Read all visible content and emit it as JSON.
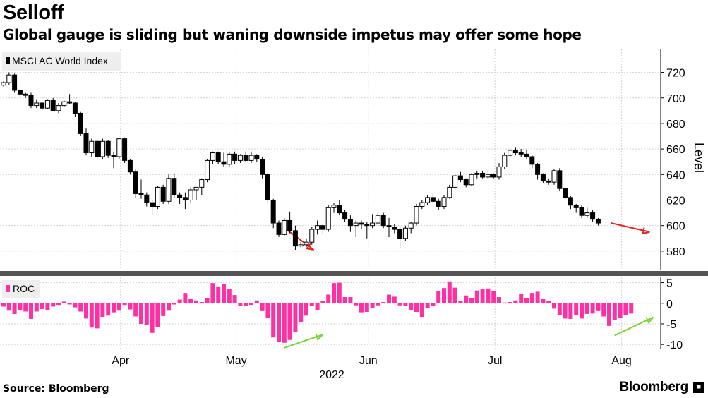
{
  "header": {
    "title": "Selloff",
    "subtitle": "Global gauge is sliding but waning downside impetus may offer some hope"
  },
  "footer": {
    "source": "Source: Bloomberg",
    "brand": "Bloomberg",
    "brand_icon": "bloomberg-terminal-icon"
  },
  "colors": {
    "candle_down": "#000000",
    "candle_up": "#ffffff",
    "roc_bar": "#ff2fa4",
    "arrow_red": "#e8231f",
    "arrow_green": "#7bd43a",
    "grid": "#d4d4d4",
    "divider": "#555555"
  },
  "chart_data": [
    {
      "type": "candlestick",
      "legend": "MSCI AC World Index",
      "ylabel": "Level",
      "ylim": [
        565,
        738
      ],
      "yticks": [
        "580",
        "600",
        "620",
        "640",
        "660",
        "680",
        "700",
        "720"
      ],
      "ytick_values": [
        580,
        600,
        620,
        640,
        660,
        680,
        700,
        720
      ],
      "xtick_labels": [
        "Apr",
        "May",
        "Jun",
        "Jul",
        "Aug"
      ],
      "xtick_index": [
        11,
        32,
        56,
        79,
        102
      ],
      "year_label": "2022",
      "arrows": [
        {
          "color": "red",
          "from_index": 52,
          "from_value": 597,
          "to_index": 57,
          "to_value": 581
        },
        {
          "color": "red",
          "from_index": 111,
          "from_value": 602,
          "to_index": 118,
          "to_value": 595
        }
      ],
      "candles": [
        [
          710,
          713,
          709,
          712
        ],
        [
          712,
          720,
          710,
          718
        ],
        [
          718,
          719,
          704,
          706
        ],
        [
          706,
          707,
          700,
          703
        ],
        [
          703,
          704,
          700,
          702
        ],
        [
          702,
          704,
          692,
          694
        ],
        [
          694,
          699,
          692,
          696
        ],
        [
          696,
          697,
          690,
          692
        ],
        [
          692,
          699,
          691,
          698
        ],
        [
          698,
          700,
          690,
          690
        ],
        [
          690,
          696,
          688,
          694
        ],
        [
          694,
          698,
          693,
          697
        ],
        [
          697,
          703,
          695,
          696
        ],
        [
          696,
          697,
          685,
          688
        ],
        [
          688,
          689,
          670,
          672
        ],
        [
          672,
          676,
          655,
          657
        ],
        [
          657,
          668,
          654,
          666
        ],
        [
          666,
          667,
          652,
          654
        ],
        [
          654,
          668,
          652,
          666
        ],
        [
          666,
          667,
          653,
          655
        ],
        [
          655,
          658,
          645,
          654
        ],
        [
          654,
          668,
          652,
          668
        ],
        [
          668,
          669,
          649,
          651
        ],
        [
          651,
          652,
          640,
          642
        ],
        [
          642,
          644,
          622,
          625
        ],
        [
          625,
          636,
          621,
          624
        ],
        [
          624,
          626,
          615,
          618
        ],
        [
          618,
          620,
          608,
          615
        ],
        [
          615,
          631,
          613,
          630
        ],
        [
          630,
          632,
          617,
          619
        ],
        [
          619,
          640,
          617,
          637
        ],
        [
          637,
          641,
          622,
          624
        ],
        [
          624,
          626,
          617,
          622
        ],
        [
          622,
          626,
          613,
          620
        ],
        [
          620,
          630,
          618,
          628
        ],
        [
          628,
          630,
          620,
          630
        ],
        [
          630,
          637,
          624,
          636
        ],
        [
          636,
          652,
          634,
          651
        ],
        [
          651,
          658,
          648,
          657
        ],
        [
          657,
          658,
          648,
          650
        ],
        [
          650,
          657,
          646,
          648
        ],
        [
          648,
          658,
          646,
          656
        ],
        [
          656,
          658,
          648,
          651
        ],
        [
          651,
          656,
          649,
          655
        ],
        [
          655,
          658,
          650,
          651
        ],
        [
          651,
          658,
          649,
          655
        ],
        [
          655,
          656,
          650,
          652
        ],
        [
          652,
          654,
          637,
          640
        ],
        [
          640,
          642,
          618,
          620
        ],
        [
          620,
          621,
          598,
          602
        ],
        [
          602,
          604,
          591,
          593
        ],
        [
          593,
          606,
          592,
          604
        ],
        [
          604,
          611,
          594,
          596
        ],
        [
          596,
          600,
          581,
          584
        ],
        [
          584,
          587,
          583,
          585
        ],
        [
          585,
          590,
          583,
          587
        ],
        [
          587,
          599,
          585,
          597
        ],
        [
          597,
          604,
          593,
          600
        ],
        [
          600,
          601,
          593,
          597
        ],
        [
          597,
          616,
          595,
          614
        ],
        [
          614,
          618,
          610,
          616
        ],
        [
          616,
          620,
          608,
          610
        ],
        [
          610,
          612,
          603,
          605
        ],
        [
          605,
          608,
          595,
          600
        ],
        [
          600,
          604,
          591,
          602
        ],
        [
          602,
          604,
          597,
          601
        ],
        [
          601,
          603,
          590,
          600
        ],
        [
          600,
          609,
          598,
          602
        ],
        [
          602,
          610,
          600,
          608
        ],
        [
          608,
          610,
          598,
          600
        ],
        [
          600,
          606,
          591,
          599
        ],
        [
          599,
          601,
          594,
          597
        ],
        [
          597,
          600,
          582,
          590
        ],
        [
          590,
          600,
          588,
          598
        ],
        [
          598,
          603,
          594,
          602
        ],
        [
          602,
          617,
          600,
          615
        ],
        [
          615,
          620,
          613,
          618
        ],
        [
          618,
          624,
          616,
          622
        ],
        [
          622,
          625,
          618,
          619
        ],
        [
          619,
          621,
          612,
          615
        ],
        [
          615,
          624,
          613,
          622
        ],
        [
          622,
          632,
          621,
          630
        ],
        [
          630,
          640,
          628,
          639
        ],
        [
          639,
          642,
          634,
          636
        ],
        [
          636,
          637,
          630,
          632
        ],
        [
          632,
          641,
          631,
          640
        ],
        [
          640,
          643,
          637,
          641
        ],
        [
          641,
          643,
          637,
          638
        ],
        [
          638,
          643,
          636,
          640
        ],
        [
          640,
          641,
          637,
          638
        ],
        [
          638,
          649,
          636,
          646
        ],
        [
          646,
          657,
          644,
          655
        ],
        [
          655,
          660,
          653,
          659
        ],
        [
          659,
          661,
          655,
          657
        ],
        [
          657,
          660,
          654,
          656
        ],
        [
          656,
          659,
          652,
          654
        ],
        [
          654,
          655,
          645,
          648
        ],
        [
          648,
          649,
          636,
          640
        ],
        [
          640,
          641,
          633,
          635
        ],
        [
          635,
          637,
          632,
          634
        ],
        [
          634,
          644,
          632,
          643
        ],
        [
          643,
          645,
          627,
          629
        ],
        [
          629,
          630,
          620,
          622
        ],
        [
          622,
          623,
          613,
          616
        ],
        [
          616,
          617,
          610,
          614
        ],
        [
          614,
          616,
          606,
          608
        ],
        [
          608,
          614,
          606,
          610
        ],
        [
          610,
          612,
          603,
          605
        ],
        [
          605,
          606,
          600,
          602
        ]
      ]
    },
    {
      "type": "bar",
      "legend": "ROC",
      "ylim": [
        -11,
        6.3
      ],
      "yticks": [
        "5",
        "0",
        "-5",
        "-10"
      ],
      "ytick_values": [
        5,
        0,
        -5,
        -10
      ],
      "arrows": [
        {
          "color": "green",
          "from_index": 51,
          "from_value": -10.8,
          "to_index": 58,
          "to_value": -7.6
        },
        {
          "color": "green",
          "from_index": 111,
          "from_value": -7.8,
          "to_index": 118,
          "to_value": -3.4
        }
      ],
      "values": [
        -0.8,
        -1.8,
        -2.6,
        -1.7,
        -2.0,
        -3.8,
        -2.0,
        -1.4,
        -1.6,
        -0.8,
        -0.4,
        0.4,
        -0.3,
        -1.0,
        -2.0,
        -3.7,
        -5.9,
        -6.1,
        -3.3,
        -3.0,
        -2.2,
        -1.8,
        -0.4,
        -1.5,
        -3.2,
        -5.0,
        -5.3,
        -7.2,
        -5.8,
        -3.1,
        -1.8,
        -0.3,
        0.9,
        2.5,
        1.0,
        0.7,
        0.3,
        1.2,
        4.9,
        4.1,
        4.7,
        3.4,
        2.0,
        -0.6,
        -0.7,
        -0.4,
        0.7,
        -1.9,
        -3.6,
        -8.3,
        -9.3,
        -9.6,
        -8.9,
        -7.0,
        -4.5,
        -3.0,
        -0.7,
        -1.6,
        0.5,
        2.1,
        4.9,
        5.0,
        1.5,
        1.5,
        -0.5,
        -2.2,
        -2.1,
        -1.1,
        -0.5,
        0.3,
        2.1,
        1.6,
        -0.5,
        -0.6,
        -1.6,
        -2.1,
        -3.3,
        -1.1,
        -0.6,
        2.9,
        3.7,
        5.3,
        3.8,
        0.6,
        1.9,
        1.3,
        3.1,
        3.4,
        3.6,
        2.9,
        1.5,
        0.2,
        0.3,
        0.7,
        2.2,
        1.2,
        2.5,
        2.8,
        1.0,
        0.6,
        -1.3,
        -2.9,
        -3.7,
        -3.8,
        -2.8,
        -3.7,
        -2.6,
        -2.5,
        -1.9,
        -3.2,
        -5.5,
        -4.0,
        -3.6,
        -2.8,
        -2.5
      ]
    }
  ]
}
